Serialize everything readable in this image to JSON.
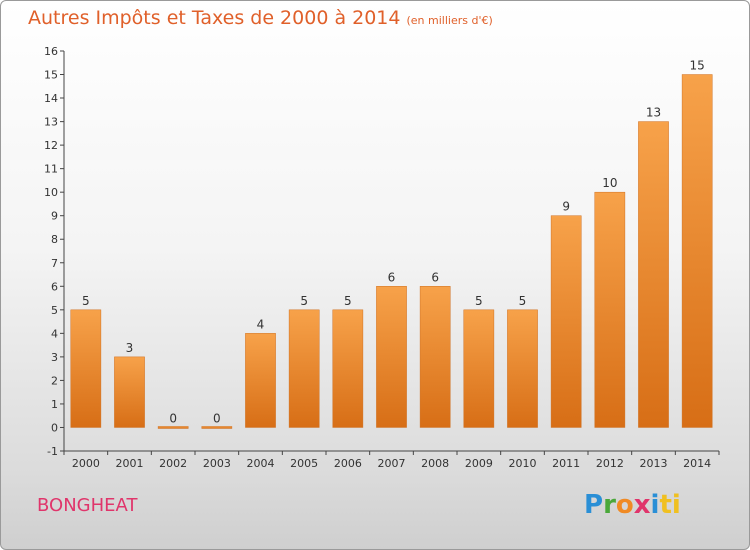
{
  "chart_data": {
    "type": "bar",
    "title": "Autres Impôts et Taxes de 2000 à 2014",
    "title_unit": "(en milliers d'€)",
    "categories": [
      "2000",
      "2001",
      "2002",
      "2003",
      "2004",
      "2005",
      "2006",
      "2007",
      "2008",
      "2009",
      "2010",
      "2011",
      "2012",
      "2013",
      "2014"
    ],
    "values": [
      5,
      3,
      0,
      0,
      4,
      5,
      5,
      6,
      6,
      5,
      5,
      9,
      10,
      13,
      15
    ],
    "ylim": [
      -1,
      16
    ],
    "yticks": [
      -1,
      0,
      1,
      2,
      3,
      4,
      5,
      6,
      7,
      8,
      9,
      10,
      11,
      12,
      13,
      14,
      15,
      16
    ],
    "grid": false,
    "bar_color": "#f0912f"
  },
  "commune": "BONGHEAT",
  "logo": {
    "letters": [
      "P",
      "r",
      "o",
      "x",
      "i",
      "ti"
    ]
  }
}
